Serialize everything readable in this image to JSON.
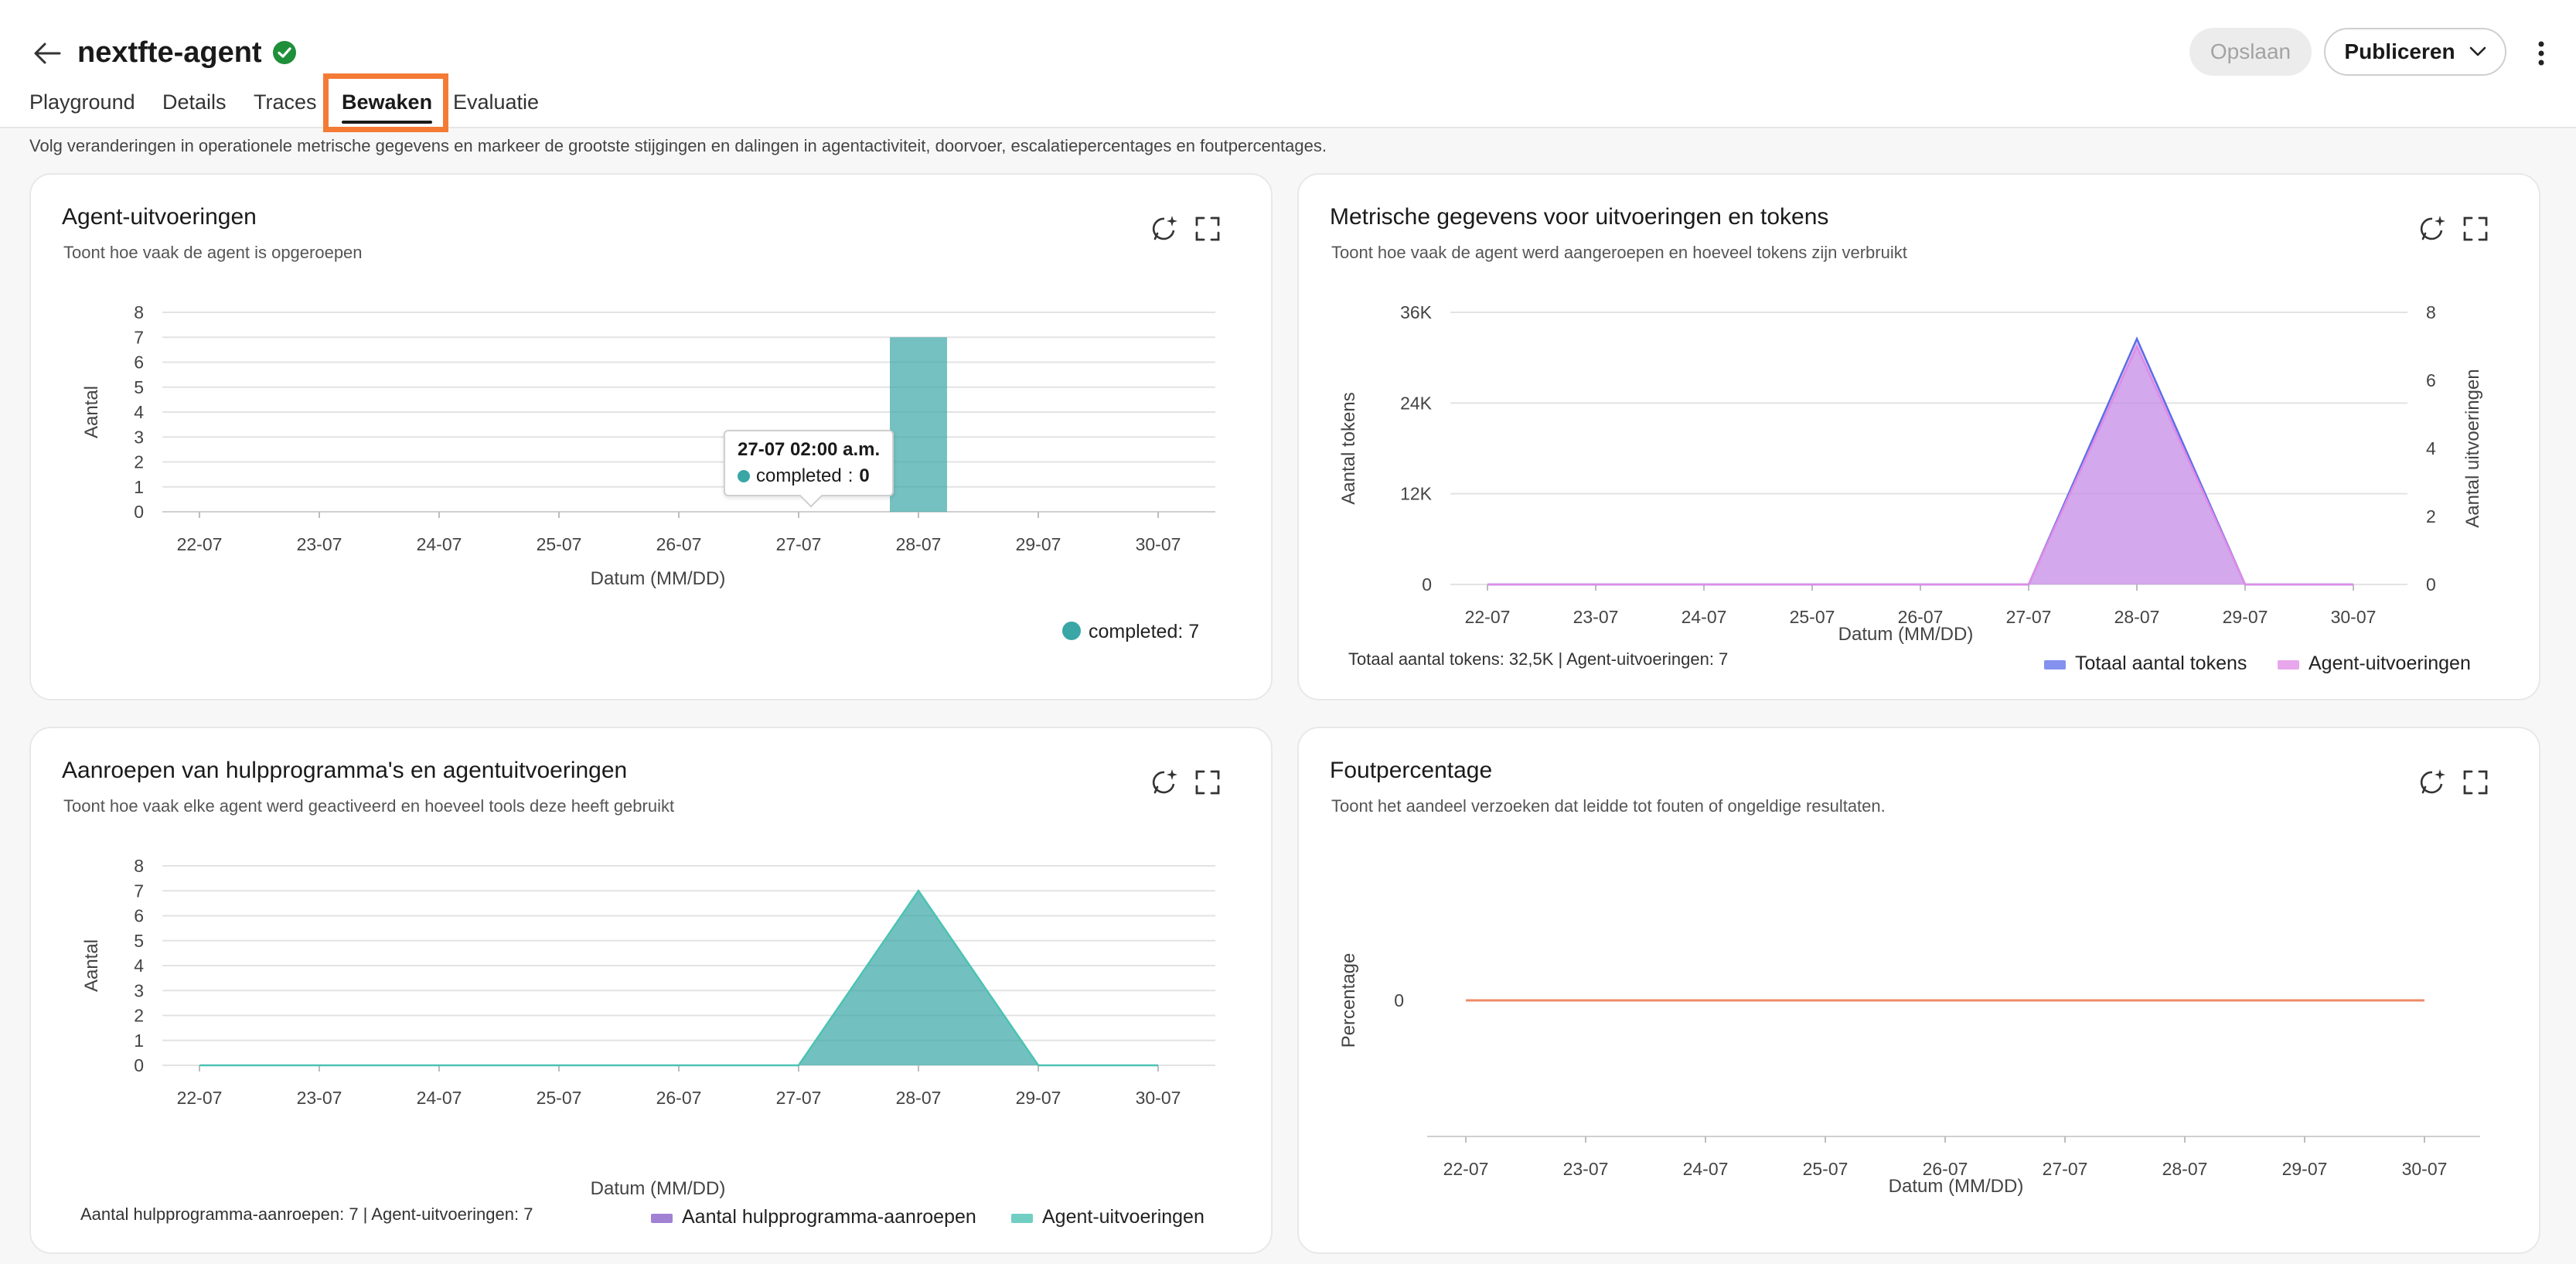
{
  "header": {
    "title": "nextfte-agent",
    "save_label": "Opslaan",
    "publish_label": "Publiceren"
  },
  "tabs": [
    {
      "label": "Playground"
    },
    {
      "label": "Details"
    },
    {
      "label": "Traces"
    },
    {
      "label": "Bewaken"
    },
    {
      "label": "Evaluatie"
    }
  ],
  "active_tab": "Bewaken",
  "description": "Volg veranderingen in operationele metrische gegevens en markeer de grootste stijgingen en dalingen in agentactiviteit, doorvoer, escalatiepercentages en foutpercentages.",
  "colors": {
    "accent_highlight": "#f47b35",
    "teal": "#3aa6a6",
    "purple": "#c58be6",
    "blue_line": "#5b6ee8",
    "pink_line": "#e08ae6",
    "error_line": "#ef8a68",
    "verified": "#1f8f3a"
  },
  "cards": {
    "runs": {
      "title": "Agent-uitvoeringen",
      "subtitle": "Toont hoe vaak de agent is opgeroepen",
      "icons": [
        "ai-insight-icon",
        "expand-icon"
      ]
    },
    "tokens": {
      "title": "Metrische gegevens voor uitvoeringen en tokens",
      "subtitle": "Toont hoe vaak de agent werd aangeroepen en hoeveel tokens zijn verbruikt",
      "summary": "Totaal aantal tokens: 32,5K | Agent-uitvoeringen: 7"
    },
    "tools": {
      "title": "Aanroepen van hulpprogramma's en agentuitvoeringen",
      "subtitle": "Toont hoe vaak elke agent werd geactiveerd en hoeveel tools deze heeft gebruikt",
      "summary": "Aantal hulpprogramma-aanroepen: 7 | Agent-uitvoeringen: 7"
    },
    "errors": {
      "title": "Foutpercentage",
      "subtitle": "Toont het aandeel verzoeken dat leidde tot fouten of ongeldige resultaten."
    }
  },
  "tooltip": {
    "title": "27-07 02:00 a.m.",
    "series": "completed",
    "value": "0"
  },
  "chart_data": [
    {
      "type": "bar",
      "categories": [
        "22-07",
        "23-07",
        "24-07",
        "25-07",
        "26-07",
        "27-07",
        "28-07",
        "29-07",
        "30-07"
      ],
      "series": [
        {
          "name": "completed",
          "values": [
            0,
            0,
            0,
            0,
            0,
            0,
            7,
            0,
            0
          ]
        }
      ],
      "xlabel": "Datum (MM/DD)",
      "ylabel": "Aantal",
      "ylim": [
        0,
        8
      ],
      "yticks": [
        "0",
        "1",
        "2",
        "3",
        "4",
        "5",
        "6",
        "7",
        "8"
      ],
      "legend": [
        {
          "label": "completed: 7"
        }
      ],
      "legend_position": "bottom-right",
      "grid": true
    },
    {
      "type": "area",
      "categories": [
        "22-07",
        "23-07",
        "24-07",
        "25-07",
        "26-07",
        "27-07",
        "28-07",
        "29-07",
        "30-07"
      ],
      "series": [
        {
          "name": "Totaal aantal tokens",
          "axis": "left",
          "values": [
            0,
            0,
            0,
            0,
            0,
            0,
            32500,
            0,
            0
          ]
        },
        {
          "name": "Agent-uitvoeringen",
          "axis": "right",
          "values": [
            0,
            0,
            0,
            0,
            0,
            0,
            7,
            0,
            0
          ]
        }
      ],
      "xlabel": "Datum (MM/DD)",
      "ylabel": "Aantal tokens",
      "ylabel_right": "Aantal uitvoeringen",
      "ylim": [
        0,
        36000
      ],
      "ylim_right": [
        0,
        8
      ],
      "yticks": [
        "0",
        "12K",
        "24K",
        "36K"
      ],
      "yticks_right": [
        "0",
        "2",
        "4",
        "6",
        "8"
      ],
      "legend": [
        {
          "label": "Totaal aantal tokens"
        },
        {
          "label": "Agent-uitvoeringen"
        }
      ],
      "legend_position": "bottom-right",
      "grid": true
    },
    {
      "type": "area",
      "categories": [
        "22-07",
        "23-07",
        "24-07",
        "25-07",
        "26-07",
        "27-07",
        "28-07",
        "29-07",
        "30-07"
      ],
      "series": [
        {
          "name": "Aantal hulpprogramma-aanroepen",
          "values": [
            0,
            0,
            0,
            0,
            0,
            0,
            7,
            0,
            0
          ]
        },
        {
          "name": "Agent-uitvoeringen",
          "values": [
            0,
            0,
            0,
            0,
            0,
            0,
            7,
            0,
            0
          ]
        }
      ],
      "xlabel": "Datum (MM/DD)",
      "ylabel": "Aantal",
      "ylim": [
        0,
        8
      ],
      "yticks": [
        "0",
        "1",
        "2",
        "3",
        "4",
        "5",
        "6",
        "7",
        "8"
      ],
      "legend": [
        {
          "label": "Aantal hulpprogramma-aanroepen"
        },
        {
          "label": "Agent-uitvoeringen"
        }
      ],
      "legend_position": "bottom",
      "grid": true
    },
    {
      "type": "line",
      "categories": [
        "22-07",
        "23-07",
        "24-07",
        "25-07",
        "26-07",
        "27-07",
        "28-07",
        "29-07",
        "30-07"
      ],
      "series": [
        {
          "name": "Foutpercentage",
          "values": [
            0,
            0,
            0,
            0,
            0,
            0,
            0,
            0,
            0
          ]
        }
      ],
      "xlabel": "Datum (MM/DD)",
      "ylabel": "Percentage",
      "yticks": [
        "0"
      ],
      "grid": false
    }
  ]
}
